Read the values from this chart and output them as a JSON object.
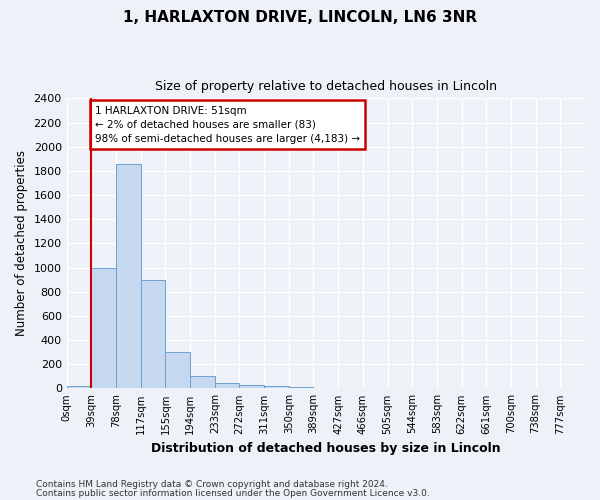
{
  "title1": "1, HARLAXTON DRIVE, LINCOLN, LN6 3NR",
  "title2": "Size of property relative to detached houses in Lincoln",
  "xlabel": "Distribution of detached houses by size in Lincoln",
  "ylabel": "Number of detached properties",
  "bar_color": "#c5d8f0",
  "bar_edge_color": "#6aa0d0",
  "marker_color": "#cc0000",
  "annotation_box_color": "#cc0000",
  "categories": [
    "0sqm",
    "39sqm",
    "78sqm",
    "117sqm",
    "155sqm",
    "194sqm",
    "233sqm",
    "272sqm",
    "311sqm",
    "350sqm",
    "389sqm",
    "427sqm",
    "466sqm",
    "505sqm",
    "544sqm",
    "583sqm",
    "622sqm",
    "661sqm",
    "700sqm",
    "738sqm",
    "777sqm"
  ],
  "values": [
    20,
    1000,
    1860,
    900,
    305,
    100,
    47,
    30,
    20,
    10,
    5,
    3,
    2,
    1,
    1,
    0,
    0,
    0,
    0,
    0,
    0
  ],
  "property_bin_index": 1,
  "ylim": [
    0,
    2400
  ],
  "yticks": [
    0,
    200,
    400,
    600,
    800,
    1000,
    1200,
    1400,
    1600,
    1800,
    2000,
    2200,
    2400
  ],
  "annotation_text_line1": "1 HARLAXTON DRIVE: 51sqm",
  "annotation_text_line2": "← 2% of detached houses are smaller (83)",
  "annotation_text_line3": "98% of semi-detached houses are larger (4,183) →",
  "footnote1": "Contains HM Land Registry data © Crown copyright and database right 2024.",
  "footnote2": "Contains public sector information licensed under the Open Government Licence v3.0.",
  "background_color": "#eef2f8",
  "grid_color": "#ffffff"
}
